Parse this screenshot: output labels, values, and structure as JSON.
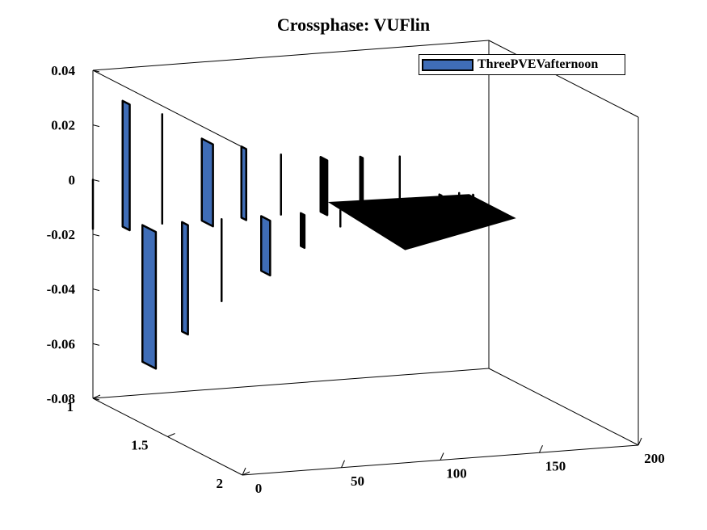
{
  "chart_data": {
    "type": "waterfall-3d",
    "title": "Crossphase: VUFlin",
    "xlabel": "",
    "ylabel": "",
    "zlabel": "",
    "x_ticks": [
      "0",
      "50",
      "100",
      "150",
      "200"
    ],
    "y_ticks": [
      "1",
      "1.5",
      "2"
    ],
    "z_ticks": [
      "0.04",
      "0.02",
      "0",
      "-0.02",
      "-0.04",
      "-0.06",
      "-0.08"
    ],
    "xlim": [
      0,
      200
    ],
    "ylim": [
      1,
      2
    ],
    "zlim": [
      -0.08,
      0.04
    ],
    "legend": {
      "position": "top-right",
      "entries": [
        "ThreePVEVafternoon"
      ]
    },
    "series": [
      {
        "name": "ThreePVEVafternoon",
        "x": [
          0,
          15,
          25,
          35,
          45,
          55,
          65,
          75,
          85,
          95,
          105,
          115,
          125,
          135,
          145,
          155,
          165,
          175,
          185,
          192
        ],
        "y": [
          1,
          1,
          1,
          1,
          1,
          1,
          1,
          1,
          1,
          1,
          1,
          1,
          1,
          1,
          1,
          1,
          1,
          1,
          1,
          1
        ],
        "z": [
          0.0,
          0.028,
          -0.068,
          0.022,
          -0.058,
          0.012,
          -0.048,
          0.008,
          -0.038,
          0.004,
          -0.03,
          0.002,
          -0.024,
          0.001,
          -0.02,
          0.0,
          -0.018,
          -0.015,
          -0.015,
          -0.016
        ]
      }
    ],
    "colors": {
      "face": "#3f6db7",
      "edge": "#000000"
    },
    "grid": false
  }
}
